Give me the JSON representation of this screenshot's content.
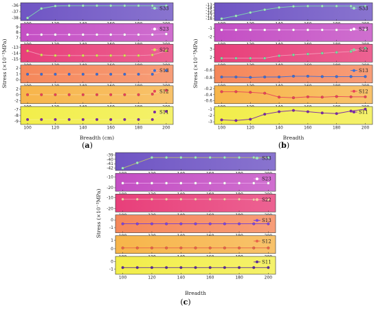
{
  "captions": {
    "a": "a",
    "b": "b",
    "c": "c"
  },
  "chart_data": [
    {
      "id": "a",
      "type": "line",
      "xlabel": "Breadth (cm)",
      "ylabel": "Stress (×10⁻³MPa)",
      "xlim": [
        95,
        205
      ],
      "x_ticks": [
        100,
        120,
        140,
        160,
        180,
        200
      ],
      "panels": [
        {
          "name": "S33",
          "bg": "#6f55c4",
          "line": "#7fd9b0",
          "marker": "#9fe6c0",
          "yticks": [
            -36,
            -37,
            -38
          ],
          "ylim": [
            -38.2,
            -35.8
          ],
          "x": [
            100,
            110,
            120,
            130,
            140,
            150,
            160,
            170,
            180,
            190,
            200
          ],
          "values": [
            -38.0,
            -36.5,
            -36.1,
            -36.05,
            -36.05,
            -36.05,
            -36.05,
            -36.05,
            -36.05,
            -36.05,
            -36.05
          ]
        },
        {
          "name": "S23",
          "bg": "#c44fc4",
          "line": "#e9a0e9",
          "marker": "#ffffff",
          "yticks": [
            9,
            8,
            7
          ],
          "ylim": [
            6.6,
            9.4
          ],
          "x": [
            100,
            110,
            120,
            130,
            140,
            150,
            160,
            170,
            180,
            190,
            200
          ],
          "values": [
            7.6,
            7.6,
            7.6,
            7.6,
            7.6,
            7.6,
            7.6,
            7.6,
            7.6,
            7.6,
            7.7
          ]
        },
        {
          "name": "S22",
          "bg": "#e83f7a",
          "line": "#f29ab7",
          "marker": "#d8e05a",
          "yticks": [
            -13,
            -14,
            -15
          ],
          "ylim": [
            -15.3,
            -12.7
          ],
          "x": [
            100,
            110,
            120,
            130,
            140,
            150,
            160,
            170,
            180,
            190,
            200
          ],
          "values": [
            -13.6,
            -14.3,
            -14.4,
            -14.4,
            -14.4,
            -14.4,
            -14.4,
            -14.4,
            -14.4,
            -14.3,
            -13.6
          ]
        },
        {
          "name": "S13",
          "bg": "#f5875a",
          "line": "#f8b596",
          "marker": "#3a6fd8",
          "yticks": [
            2,
            1,
            0
          ],
          "ylim": [
            -0.3,
            2.3
          ],
          "x": [
            100,
            110,
            120,
            130,
            140,
            150,
            160,
            170,
            180,
            190,
            200
          ],
          "values": [
            0.95,
            0.95,
            0.95,
            0.95,
            0.95,
            0.95,
            0.95,
            0.95,
            0.95,
            0.95,
            1.6
          ]
        },
        {
          "name": "S12",
          "bg": "#f7b54a",
          "line": "#f9d08a",
          "marker": "#e8425a",
          "yticks": [
            2,
            0,
            -2
          ],
          "ylim": [
            -2.6,
            2.6
          ],
          "x": [
            100,
            110,
            120,
            130,
            140,
            150,
            160,
            170,
            180,
            190,
            200
          ],
          "values": [
            0,
            0,
            0,
            0,
            0,
            0,
            0,
            0,
            0,
            0.2,
            1.5
          ]
        },
        {
          "name": "S11",
          "bg": "#f2ee4a",
          "line": "#f6ef8a",
          "marker": "#7a2aa8",
          "yticks": [
            -7,
            -8,
            -9
          ],
          "ylim": [
            -9.3,
            -6.7
          ],
          "x": [
            100,
            110,
            120,
            130,
            140,
            150,
            160,
            170,
            180,
            190,
            200
          ],
          "values": [
            -8.7,
            -8.7,
            -8.7,
            -8.7,
            -8.7,
            -8.7,
            -8.7,
            -8.7,
            -8.7,
            -8.7,
            -7.3
          ]
        }
      ]
    },
    {
      "id": "b",
      "type": "line",
      "xlabel": "Breadth",
      "ylabel": "Stress (×10⁻³MPa)",
      "xlim": [
        95,
        205
      ],
      "x_ticks": [
        100,
        120,
        140,
        160,
        180,
        200
      ],
      "panels": [
        {
          "name": "S33",
          "bg": "#6f55c4",
          "line": "#7fd9b0",
          "marker": "#9fe6c0",
          "yticks": [
            -13,
            -14,
            -15,
            -16,
            -17,
            -18
          ],
          "ylim": [
            -18.2,
            -12.8
          ],
          "x": [
            100,
            110,
            120,
            130,
            140,
            150,
            160,
            170,
            180,
            190,
            200
          ],
          "values": [
            -18.0,
            -17.0,
            -15.8,
            -14.8,
            -14.0,
            -13.6,
            -13.5,
            -13.5,
            -13.5,
            -13.5,
            -13.5
          ]
        },
        {
          "name": "S23",
          "bg": "#c44fc4",
          "line": "#e9a0e9",
          "marker": "#ffffff",
          "yticks": [
            -1,
            -2
          ],
          "ylim": [
            -2.4,
            -0.6
          ],
          "x": [
            100,
            110,
            120,
            130,
            140,
            150,
            160,
            170,
            180,
            190,
            200
          ],
          "values": [
            -1.2,
            -1.2,
            -1.2,
            -1.2,
            -1.2,
            -1.2,
            -1.2,
            -1.2,
            -1.2,
            -1.2,
            -1.2
          ]
        },
        {
          "name": "S22",
          "bg": "#e83f7a",
          "line": "#f29ab7",
          "marker": "#7fd9a0",
          "yticks": [
            3,
            2
          ],
          "ylim": [
            1.6,
            3.4
          ],
          "x": [
            100,
            110,
            120,
            130,
            140,
            150,
            160,
            170,
            180,
            190,
            200
          ],
          "values": [
            1.9,
            1.9,
            1.9,
            1.9,
            2.2,
            2.3,
            2.4,
            2.5,
            2.6,
            2.7,
            3.1
          ]
        },
        {
          "name": "S13",
          "bg": "#f5875a",
          "line": "#3a6fd8",
          "marker": "#3a6fd8",
          "yticks": [
            -0.6,
            -0.8
          ],
          "ylim": [
            -0.9,
            -0.5
          ],
          "x": [
            100,
            110,
            120,
            130,
            140,
            150,
            160,
            170,
            180,
            190,
            200
          ],
          "values": [
            -0.78,
            -0.78,
            -0.79,
            -0.78,
            -0.78,
            -0.76,
            -0.76,
            -0.77,
            -0.77,
            -0.77,
            -0.77
          ]
        },
        {
          "name": "S12",
          "bg": "#f7b54a",
          "line": "#e8425a",
          "marker": "#e8425a",
          "yticks": [
            -0.2,
            -0.4,
            -0.6
          ],
          "ylim": [
            -0.65,
            -0.15
          ],
          "x": [
            100,
            110,
            120,
            130,
            140,
            150,
            160,
            170,
            180,
            190,
            200
          ],
          "values": [
            -0.3,
            -0.3,
            -0.32,
            -0.35,
            -0.48,
            -0.5,
            -0.47,
            -0.48,
            -0.46,
            -0.47,
            -0.47
          ]
        },
        {
          "name": "S11",
          "bg": "#f2ee4a",
          "line": "#7a2aa8",
          "marker": "#7a2aa8",
          "yticks": [
            -1,
            -2,
            -3
          ],
          "ylim": [
            -3.2,
            -0.8
          ],
          "x": [
            100,
            110,
            120,
            130,
            140,
            150,
            160,
            170,
            180,
            190,
            200
          ],
          "values": [
            -2.7,
            -2.8,
            -2.6,
            -1.8,
            -1.4,
            -1.2,
            -1.4,
            -1.6,
            -1.7,
            -1.3,
            -1.0
          ]
        }
      ]
    },
    {
      "id": "c",
      "type": "line",
      "xlabel": "Breadth",
      "ylabel": "Stress (×10⁻³MPa)",
      "xlim": [
        95,
        205
      ],
      "x_ticks": [
        100,
        120,
        140,
        160,
        180,
        200
      ],
      "panels": [
        {
          "name": "S33",
          "bg": "#6f55c4",
          "line": "#b9c070",
          "marker": "#9fe6c0",
          "yticks": [
            -39,
            -40,
            -41,
            -42
          ],
          "ylim": [
            -42.2,
            -38.8
          ],
          "x": [
            100,
            110,
            120,
            130,
            140,
            150,
            160,
            170,
            180,
            190,
            200
          ],
          "values": [
            -42.0,
            -40.8,
            -39.6,
            -39.6,
            -39.6,
            -39.6,
            -39.6,
            -39.6,
            -39.6,
            -39.6,
            -39.6
          ]
        },
        {
          "name": "S23",
          "bg": "#c44fc4",
          "line": "#e9a0e9",
          "marker": "#ffffff",
          "yticks": [
            -10,
            -20
          ],
          "ylim": [
            -22,
            -8
          ],
          "x": [
            100,
            110,
            120,
            130,
            140,
            150,
            160,
            170,
            180,
            190,
            200
          ],
          "values": [
            -15.8,
            -15.8,
            -15.8,
            -15.8,
            -15.8,
            -15.8,
            -15.8,
            -15.8,
            -15.8,
            -15.8,
            -15.8
          ]
        },
        {
          "name": "S22",
          "bg": "#e83f7a",
          "line": "#f29ab7",
          "marker": "#f7c9a8",
          "yticks": [
            -10,
            -20
          ],
          "ylim": [
            -22,
            -8
          ],
          "x": [
            100,
            110,
            120,
            130,
            140,
            150,
            160,
            170,
            180,
            190,
            200
          ],
          "values": [
            -11.5,
            -11.5,
            -11.5,
            -11.5,
            -11.5,
            -11.5,
            -11.5,
            -11.5,
            -11.5,
            -11.8,
            -12.0
          ]
        },
        {
          "name": "S13",
          "bg": "#f5875a",
          "line": "#6a3ad8",
          "marker": "#7a44e0",
          "yticks": [
            0,
            -1
          ],
          "ylim": [
            -1.5,
            0.5
          ],
          "x": [
            100,
            110,
            120,
            130,
            140,
            150,
            160,
            170,
            180,
            190,
            200
          ],
          "values": [
            -0.5,
            -0.5,
            -0.5,
            -0.5,
            -0.5,
            -0.5,
            -0.5,
            -0.5,
            -0.5,
            -0.5,
            -0.5
          ]
        },
        {
          "name": "S12",
          "bg": "#f7b54a",
          "line": "#e8624a",
          "marker": "#e8624a",
          "yticks": [
            1,
            0
          ],
          "ylim": [
            -0.4,
            1.4
          ],
          "x": [
            100,
            110,
            120,
            130,
            140,
            150,
            160,
            170,
            180,
            190,
            200
          ],
          "values": [
            0.1,
            0.1,
            0.1,
            0.1,
            0.1,
            0.1,
            0.1,
            0.1,
            0.1,
            0.1,
            0.1
          ]
        },
        {
          "name": "S11",
          "bg": "#f2ee4a",
          "line": "#5a2a9a",
          "marker": "#5a2a9a",
          "yticks": [
            0,
            -1
          ],
          "ylim": [
            -1.5,
            0.5
          ],
          "x": [
            100,
            110,
            120,
            130,
            140,
            150,
            160,
            170,
            180,
            190,
            200
          ],
          "values": [
            -0.8,
            -0.8,
            -0.8,
            -0.8,
            -0.8,
            -0.8,
            -0.8,
            -0.8,
            -0.8,
            -0.8,
            -0.8
          ]
        }
      ]
    }
  ]
}
